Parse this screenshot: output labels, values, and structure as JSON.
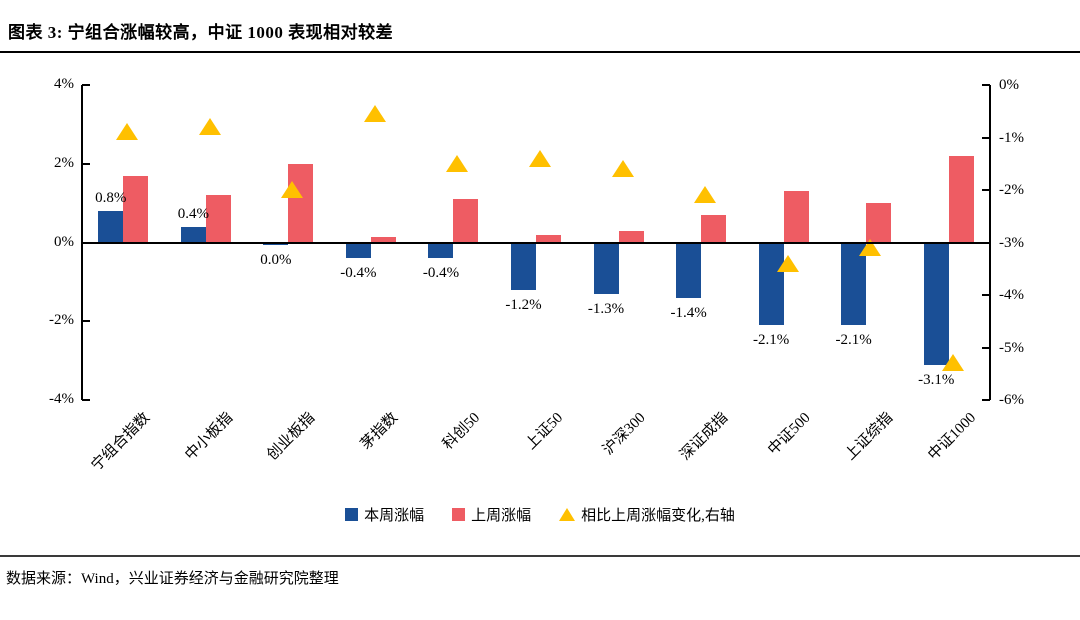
{
  "title": "图表 3: 宁组合涨幅较高，中证 1000 表现相对较差",
  "source": "数据来源：Wind，兴业证券经济与金融研究院整理",
  "colors": {
    "this_week_bar": "#1A4F96",
    "last_week_bar": "#EE5C63",
    "change_marker": "#FFC000",
    "axis": "#000000"
  },
  "chart_data": {
    "type": "bar",
    "title": "图表 3: 宁组合涨幅较高，中证 1000 表现相对较差",
    "categories": [
      "宁组合指数",
      "中小板指",
      "创业板指",
      "茅指数",
      "科创50",
      "上证50",
      "沪深300",
      "深证成指",
      "中证500",
      "上证综指",
      "中证1000"
    ],
    "series": [
      {
        "name": "本周涨幅",
        "type": "bar",
        "axis": "left",
        "color": "#1A4F96",
        "values": [
          0.8,
          0.4,
          0.0,
          -0.4,
          -0.4,
          -1.2,
          -1.3,
          -1.4,
          -2.1,
          -2.1,
          -3.1
        ],
        "labels": [
          "0.8%",
          "0.4%",
          "0.0%",
          "-0.4%",
          "-0.4%",
          "-1.2%",
          "-1.3%",
          "-1.4%",
          "-2.1%",
          "-2.1%",
          "-3.1%"
        ]
      },
      {
        "name": "上周涨幅",
        "type": "bar",
        "axis": "left",
        "color": "#EE5C63",
        "values": [
          1.7,
          1.2,
          2.0,
          0.15,
          1.1,
          0.2,
          0.3,
          0.7,
          1.3,
          1.0,
          2.2
        ]
      },
      {
        "name": "相比上周涨幅变化,右轴",
        "type": "triangle",
        "axis": "right",
        "color": "#FFC000",
        "values": [
          -0.9,
          -0.8,
          -2.0,
          -0.55,
          -1.5,
          -1.4,
          -1.6,
          -2.1,
          -3.4,
          -3.1,
          -5.3
        ]
      }
    ],
    "left_axis": {
      "min": -4,
      "max": 4,
      "tick_labels": [
        "4%",
        "2%",
        "0%",
        "-2%",
        "-4%"
      ],
      "tick_values": [
        4,
        2,
        0,
        -2,
        -4
      ]
    },
    "right_axis": {
      "min": -6,
      "max": 0,
      "tick_labels": [
        "0%",
        "-1%",
        "-2%",
        "-3%",
        "-4%",
        "-5%",
        "-6%"
      ],
      "tick_values": [
        0,
        -1,
        -2,
        -3,
        -4,
        -5,
        -6
      ]
    },
    "grid": false,
    "legend_position": "bottom"
  }
}
